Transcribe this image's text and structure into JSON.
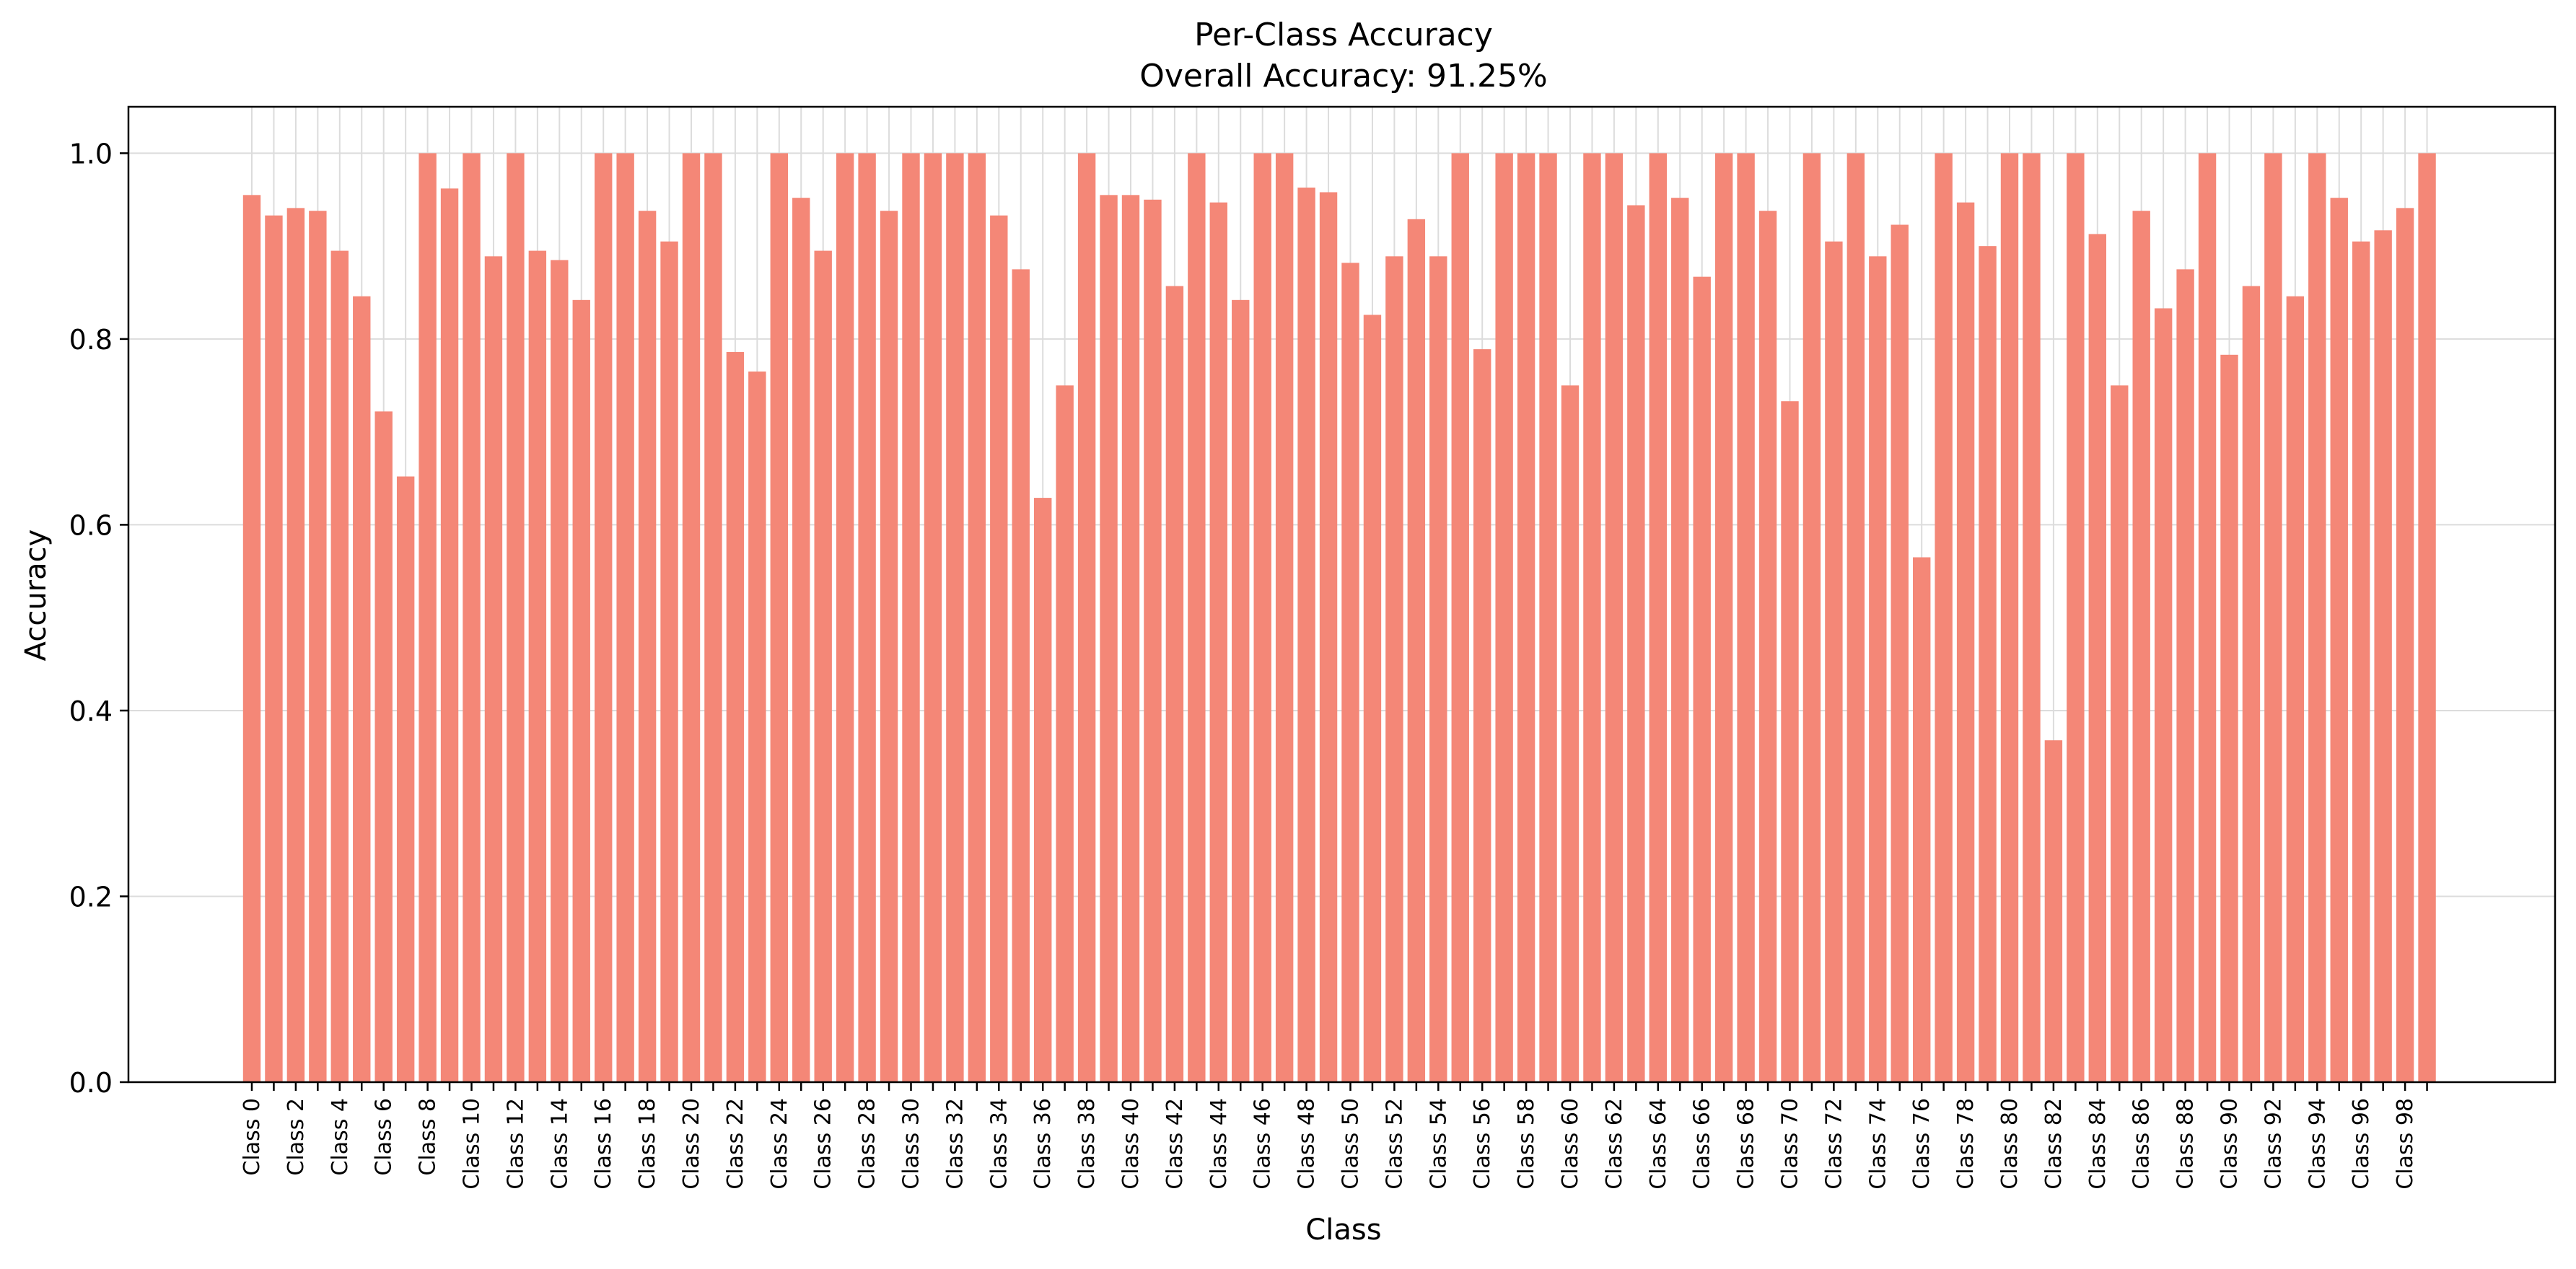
{
  "chart_data": {
    "type": "bar",
    "title": "Per-Class Accuracy",
    "subtitle": "Overall Accuracy: 91.25%",
    "xlabel": "Class",
    "ylabel": "Accuracy",
    "ylim": [
      0,
      1.05
    ],
    "yticks": [
      0.0,
      0.2,
      0.4,
      0.6,
      0.8,
      1.0
    ],
    "ytick_labels": [
      "0.0",
      "0.2",
      "0.4",
      "0.6",
      "0.8",
      "1.0"
    ],
    "grid": true,
    "bar_color": "#f48777",
    "categories": [
      "Class 0",
      "Class 1",
      "Class 2",
      "Class 3",
      "Class 4",
      "Class 5",
      "Class 6",
      "Class 7",
      "Class 8",
      "Class 9",
      "Class 10",
      "Class 11",
      "Class 12",
      "Class 13",
      "Class 14",
      "Class 15",
      "Class 16",
      "Class 17",
      "Class 18",
      "Class 19",
      "Class 20",
      "Class 21",
      "Class 22",
      "Class 23",
      "Class 24",
      "Class 25",
      "Class 26",
      "Class 27",
      "Class 28",
      "Class 29",
      "Class 30",
      "Class 31",
      "Class 32",
      "Class 33",
      "Class 34",
      "Class 35",
      "Class 36",
      "Class 37",
      "Class 38",
      "Class 39",
      "Class 40",
      "Class 41",
      "Class 42",
      "Class 43",
      "Class 44",
      "Class 45",
      "Class 46",
      "Class 47",
      "Class 48",
      "Class 49",
      "Class 50",
      "Class 51",
      "Class 52",
      "Class 53",
      "Class 54",
      "Class 55",
      "Class 56",
      "Class 57",
      "Class 58",
      "Class 59",
      "Class 60",
      "Class 61",
      "Class 62",
      "Class 63",
      "Class 64",
      "Class 65",
      "Class 66",
      "Class 67",
      "Class 68",
      "Class 69",
      "Class 70",
      "Class 71",
      "Class 72",
      "Class 73",
      "Class 74",
      "Class 75",
      "Class 76",
      "Class 77",
      "Class 78",
      "Class 79",
      "Class 80",
      "Class 81",
      "Class 82",
      "Class 83",
      "Class 84",
      "Class 85",
      "Class 86",
      "Class 87",
      "Class 88",
      "Class 89",
      "Class 90",
      "Class 91",
      "Class 92",
      "Class 93",
      "Class 94",
      "Class 95",
      "Class 96",
      "Class 97",
      "Class 98",
      "Class 99"
    ],
    "tick_labels_shown": [
      "Class 0",
      "Class 2",
      "Class 4",
      "Class 6",
      "Class 8",
      "Class 10",
      "Class 12",
      "Class 14",
      "Class 16",
      "Class 18",
      "Class 20",
      "Class 22",
      "Class 24",
      "Class 26",
      "Class 28",
      "Class 30",
      "Class 32",
      "Class 34",
      "Class 36",
      "Class 38",
      "Class 40",
      "Class 42",
      "Class 44",
      "Class 46",
      "Class 48",
      "Class 50",
      "Class 52",
      "Class 54",
      "Class 56",
      "Class 58",
      "Class 60",
      "Class 62",
      "Class 64",
      "Class 66",
      "Class 68",
      "Class 70",
      "Class 72",
      "Class 74",
      "Class 76",
      "Class 78",
      "Class 80",
      "Class 82",
      "Class 84",
      "Class 86",
      "Class 88",
      "Class 90",
      "Class 92",
      "Class 94",
      "Class 96",
      "Class 98"
    ],
    "values": [
      0.955,
      0.933,
      0.941,
      0.938,
      0.895,
      0.846,
      0.722,
      0.652,
      1.0,
      0.962,
      1.0,
      0.889,
      1.0,
      0.895,
      0.885,
      0.842,
      1.0,
      1.0,
      0.938,
      0.905,
      1.0,
      1.0,
      0.786,
      0.765,
      1.0,
      0.952,
      0.895,
      1.0,
      1.0,
      0.938,
      1.0,
      1.0,
      1.0,
      1.0,
      0.933,
      0.875,
      0.629,
      0.75,
      1.0,
      0.955,
      0.955,
      0.95,
      0.857,
      1.0,
      0.947,
      0.842,
      1.0,
      1.0,
      0.963,
      0.958,
      0.882,
      0.826,
      0.889,
      0.929,
      0.889,
      1.0,
      0.789,
      1.0,
      1.0,
      1.0,
      0.75,
      1.0,
      1.0,
      0.944,
      1.0,
      0.952,
      0.867,
      1.0,
      1.0,
      0.938,
      0.733,
      1.0,
      0.905,
      1.0,
      0.889,
      0.923,
      0.565,
      1.0,
      0.947,
      0.9,
      1.0,
      1.0,
      0.368,
      1.0,
      0.913,
      0.75,
      0.938,
      0.833,
      0.875,
      1.0,
      0.783,
      0.857,
      1.0,
      0.846,
      1.0,
      0.952,
      0.905,
      0.917,
      0.941,
      1.0
    ]
  }
}
